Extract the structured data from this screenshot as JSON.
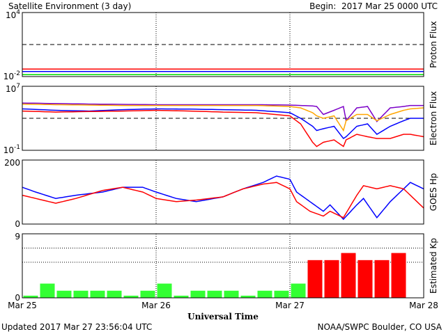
{
  "header": {
    "title": "Satellite Environment (3 day)",
    "begin": "Begin:  2017 Mar 25 0000 UTC"
  },
  "footer": {
    "updated": "Updated 2017 Mar 27 23:56:04 UTC",
    "source": "NOAA/SWPC Boulder, CO USA"
  },
  "colors": {
    "red": "#ff0000",
    "blue": "#0000ff",
    "green": "#00dd00",
    "purple": "#7b00c8",
    "orange": "#ffa500",
    "kp_green": "#33ff33",
    "kp_red": "#ff0000"
  },
  "chart_data": [
    {
      "type": "line",
      "ylabel": "Proton Flux",
      "scale": "log",
      "ylim": [
        0.01,
        10000
      ],
      "yticks": [
        {
          "v": 0.01,
          "b": "10",
          "e": "-2"
        },
        {
          "v": 10000,
          "b": "10",
          "e": "4"
        }
      ],
      "threshold": 10,
      "xlim": [
        0,
        3
      ],
      "series": [
        {
          "color": "red",
          "values": [
            0.05,
            0.05,
            0.05,
            0.05,
            0.05,
            0.05,
            0.05
          ]
        },
        {
          "color": "blue",
          "values": [
            0.03,
            0.03,
            0.03,
            0.03,
            0.03,
            0.03,
            0.03
          ]
        },
        {
          "color": "green",
          "values": [
            0.015,
            0.015,
            0.015,
            0.015,
            0.015,
            0.015,
            0.015
          ]
        }
      ],
      "series_x": [
        0,
        0.5,
        1,
        1.5,
        2,
        2.5,
        3
      ]
    },
    {
      "type": "line",
      "ylabel": "Electron Flux",
      "scale": "log",
      "ylim": [
        0.1,
        10000000
      ],
      "yticks": [
        {
          "v": 0.1,
          "b": "10",
          "e": "-1"
        },
        {
          "v": 10000000,
          "b": "10",
          "e": "7"
        }
      ],
      "threshold": 1000,
      "xlim": [
        0,
        3
      ],
      "series_x": [
        0,
        0.25,
        0.5,
        0.75,
        1,
        1.25,
        1.5,
        1.75,
        2,
        2.08,
        2.17,
        2.2,
        2.25,
        2.33,
        2.4,
        2.42,
        2.5,
        2.58,
        2.65,
        2.75,
        2.85,
        2.9,
        3
      ],
      "series": [
        {
          "color": "purple",
          "values": [
            80000,
            70000,
            60000,
            55000,
            50000,
            50000,
            50000,
            50000,
            45000,
            40000,
            35000,
            30000,
            3000,
            10000,
            30000,
            500,
            20000,
            30000,
            400,
            20000,
            30000,
            40000,
            40000
          ]
        },
        {
          "color": "orange",
          "values": [
            60000,
            50000,
            45000,
            40000,
            40000,
            40000,
            40000,
            40000,
            30000,
            20000,
            5000,
            2000,
            1000,
            2000,
            30,
            500,
            3000,
            3000,
            500,
            3000,
            10000,
            15000,
            20000
          ]
        },
        {
          "color": "blue",
          "values": [
            15000,
            10000,
            8000,
            12000,
            15000,
            14000,
            12000,
            10000,
            5000,
            1000,
            100,
            30,
            50,
            100,
            3,
            5,
            100,
            200,
            10,
            100,
            500,
            1000,
            1000
          ]
        },
        {
          "color": "red",
          "values": [
            8000,
            6000,
            7000,
            8000,
            10000,
            8000,
            6000,
            5000,
            2000,
            200,
            1,
            0.3,
            1,
            2,
            0.3,
            2,
            10,
            5,
            3,
            3,
            10,
            10,
            5
          ]
        }
      ]
    },
    {
      "type": "line",
      "ylabel": "GOES Hp",
      "ylim": [
        0,
        200
      ],
      "yticks": [
        {
          "v": 0,
          "label": "0"
        },
        {
          "v": 200,
          "label": "200"
        }
      ],
      "xlim": [
        0,
        3
      ],
      "series_x": [
        0,
        0.1,
        0.25,
        0.4,
        0.6,
        0.75,
        0.9,
        1,
        1.15,
        1.3,
        1.5,
        1.65,
        1.8,
        1.9,
        2,
        2.05,
        2.15,
        2.25,
        2.3,
        2.4,
        2.5,
        2.55,
        2.65,
        2.75,
        2.85,
        2.9,
        3
      ],
      "series": [
        {
          "color": "blue",
          "values": [
            115,
            100,
            80,
            90,
            100,
            115,
            115,
            100,
            80,
            70,
            85,
            110,
            130,
            150,
            140,
            100,
            70,
            40,
            60,
            15,
            60,
            80,
            20,
            70,
            110,
            130,
            110
          ]
        },
        {
          "color": "red",
          "values": [
            90,
            80,
            65,
            80,
            105,
            115,
            100,
            80,
            70,
            75,
            85,
            110,
            125,
            130,
            110,
            70,
            40,
            25,
            40,
            20,
            90,
            120,
            110,
            120,
            110,
            90,
            50
          ]
        }
      ]
    },
    {
      "type": "bar",
      "ylabel": "Estimated Kp",
      "ylim": [
        0,
        9
      ],
      "yticks": [
        {
          "v": 0,
          "label": "0"
        },
        {
          "v": 9,
          "label": "9"
        }
      ],
      "dashed": [
        5,
        7
      ],
      "xlim": [
        0,
        3
      ],
      "xticks": [
        "Mar 25",
        "Mar 26",
        "Mar 27",
        "Mar 28"
      ],
      "xlabel": "Universal Time",
      "threshold_value": 5,
      "values": [
        0.3,
        2,
        1,
        1,
        1,
        1,
        0.3,
        1,
        2,
        0.3,
        1,
        1,
        1,
        0.3,
        1,
        1,
        2,
        5.3,
        5.3,
        6.3,
        5.3,
        5.3,
        6.3,
        0
      ]
    }
  ]
}
